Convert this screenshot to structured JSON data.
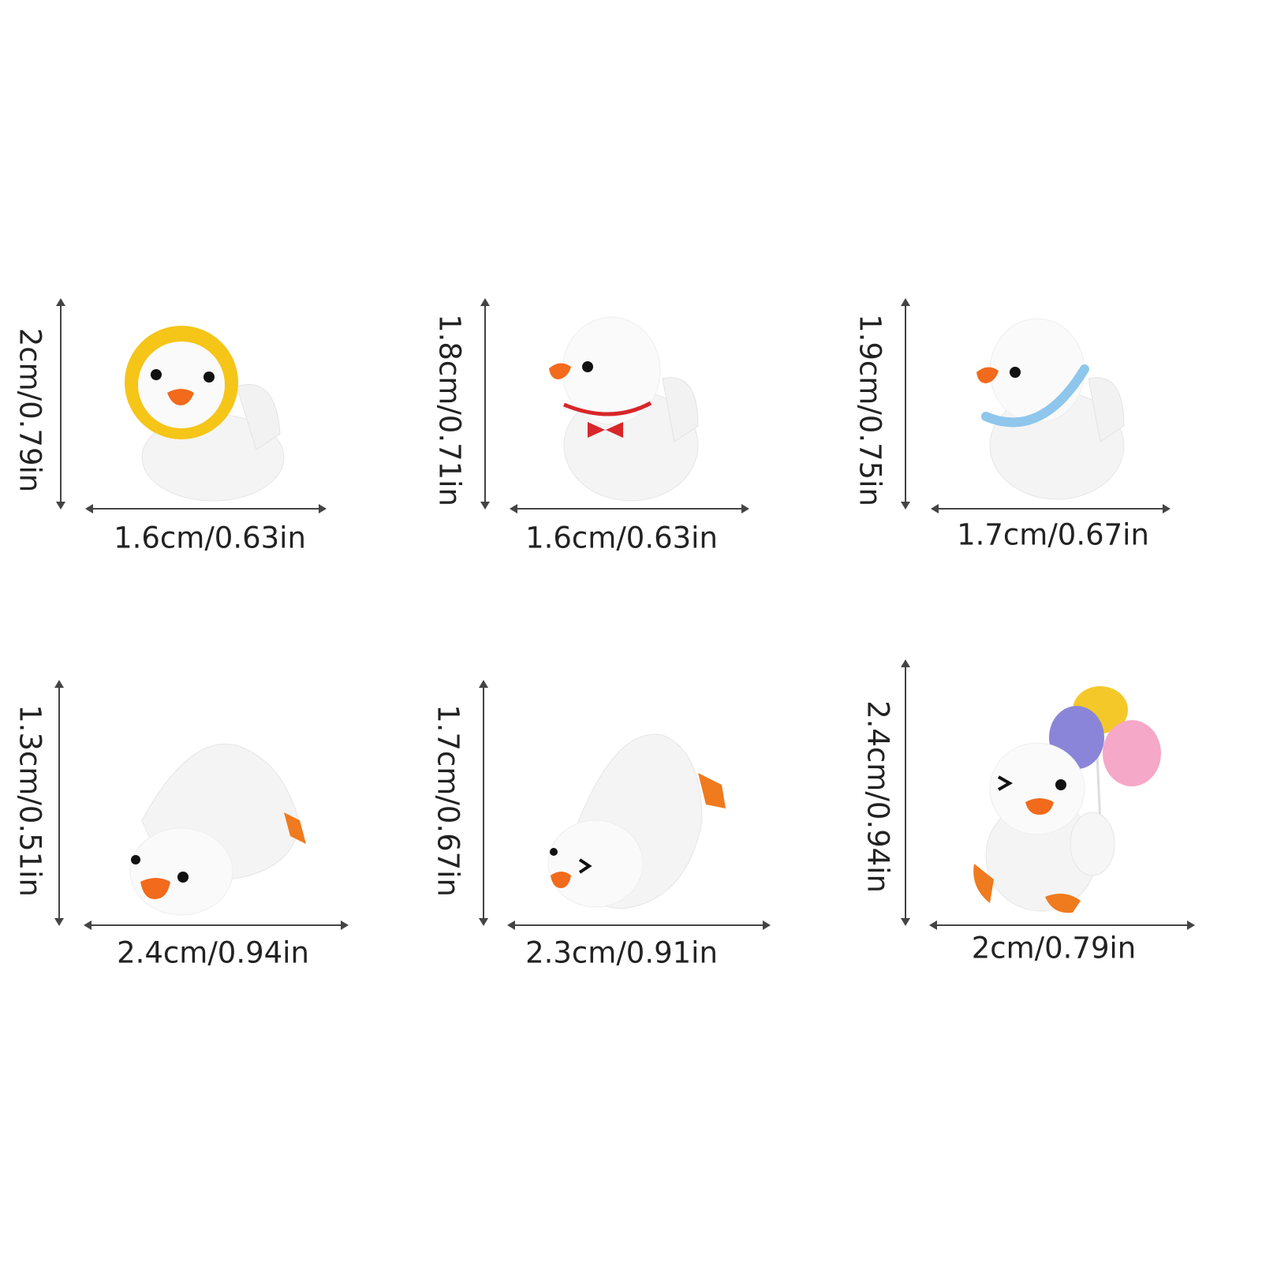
{
  "figurines": [
    {
      "height_label": "2cm/0.79in",
      "width_label": "1.6cm/0.63in",
      "accessory": "yellow lion mane",
      "accessory_color": "#F5C518"
    },
    {
      "height_label": "1.8cm/0.71in",
      "width_label": "1.6cm/0.63in",
      "accessory": "red bow tie",
      "accessory_color": "#D8262A"
    },
    {
      "height_label": "1.9cm/0.75in",
      "width_label": "1.7cm/0.67in",
      "accessory": "blue collar",
      "accessory_color": "#8EC6EC"
    },
    {
      "height_label": "1.3cm/0.51in",
      "width_label": "2.4cm/0.94in",
      "accessory": "none",
      "accessory_color": "#F07A1E"
    },
    {
      "height_label": "1.7cm/0.67in",
      "width_label": "2.3cm/0.91in",
      "accessory": "none",
      "accessory_color": "#F07A1E"
    },
    {
      "height_label": "2.4cm/0.94in",
      "width_label": "2cm/0.79in",
      "accessory": "balloons",
      "accessory_color": "#F5A8C8"
    }
  ],
  "colors": {
    "beak": "#F26A1B",
    "arrow": "#444444",
    "body": "#FFFFFF"
  }
}
